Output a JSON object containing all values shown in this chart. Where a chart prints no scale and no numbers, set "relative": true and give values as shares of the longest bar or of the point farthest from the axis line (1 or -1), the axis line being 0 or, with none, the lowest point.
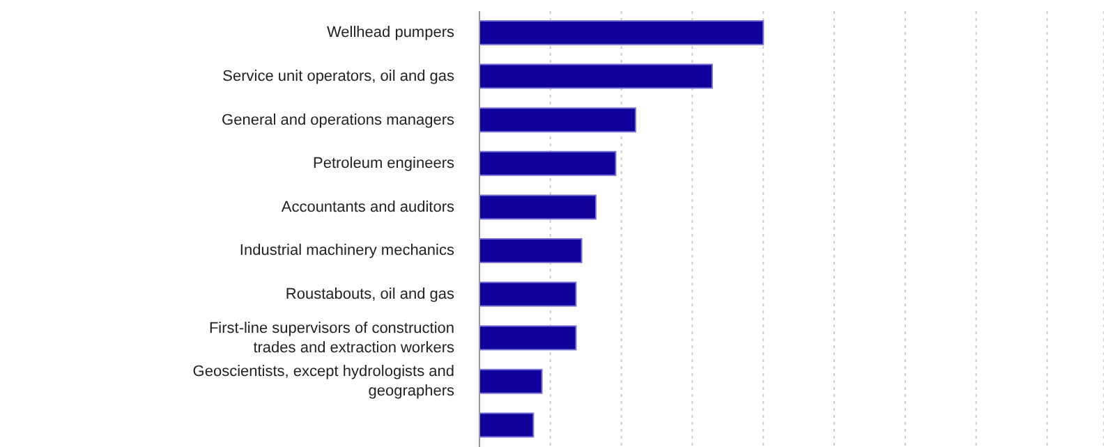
{
  "chart_data": {
    "type": "bar",
    "orientation": "horizontal",
    "relative": true,
    "grid": "x",
    "color": "#0f009c",
    "categories": [
      "Wellhead pumpers",
      "Service unit operators, oil and gas",
      "General and operations managers",
      "Petroleum engineers",
      "Accountants and auditors",
      "Industrial machinery mechanics",
      "Roustabouts, oil and gas",
      "First-line supervisors of construction trades and extraction workers",
      "Geoscientists, except hydrologists and geographers",
      null
    ],
    "values": [
      1,
      0.82,
      0.55,
      0.48,
      0.41,
      0.36,
      0.34,
      0.34,
      0.22,
      0.19
    ]
  }
}
